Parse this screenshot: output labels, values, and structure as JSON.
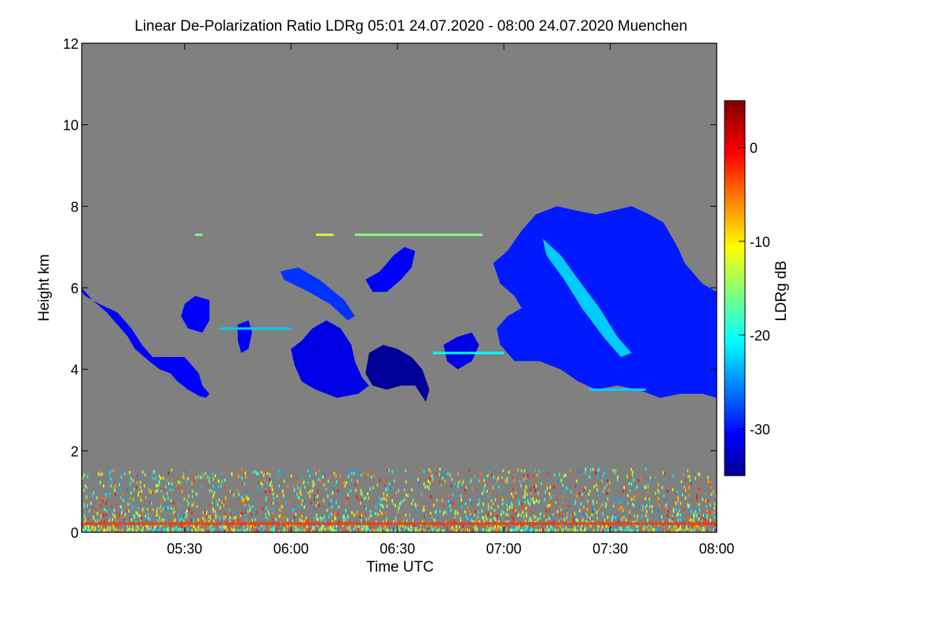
{
  "chart_data": {
    "type": "heatmap",
    "title": "Linear De-Polarization Ratio LDRg   05:01 24.07.2020 - 08:00 24.07.2020 Muenchen",
    "xlabel": "Time UTC",
    "ylabel": "Height km",
    "xlim_minutes": [
      301,
      480
    ],
    "ylim": [
      0,
      12
    ],
    "x_ticks": [
      {
        "minutes": 330,
        "label": "05:30"
      },
      {
        "minutes": 360,
        "label": "06:00"
      },
      {
        "minutes": 390,
        "label": "06:30"
      },
      {
        "minutes": 420,
        "label": "07:00"
      },
      {
        "minutes": 450,
        "label": "07:30"
      },
      {
        "minutes": 480,
        "label": "08:00"
      }
    ],
    "y_ticks": [
      {
        "value": 0,
        "label": "0"
      },
      {
        "value": 2,
        "label": "2"
      },
      {
        "value": 4,
        "label": "4"
      },
      {
        "value": 6,
        "label": "6"
      },
      {
        "value": 8,
        "label": "8"
      },
      {
        "value": 10,
        "label": "10"
      },
      {
        "value": 12,
        "label": "12"
      }
    ],
    "colorbar": {
      "label": "LDRg dB",
      "range": [
        -35,
        5
      ],
      "ticks": [
        {
          "value": 0,
          "label": "0"
        },
        {
          "value": -10,
          "label": "-10"
        },
        {
          "value": -20,
          "label": "-20"
        },
        {
          "value": -30,
          "label": "-30"
        }
      ]
    },
    "background_color": "#808080",
    "cloud_regions": [
      {
        "name": "cloud-left-slab",
        "points": [
          [
            301,
            6.0
          ],
          [
            304,
            5.7
          ],
          [
            308,
            5.4
          ],
          [
            312,
            5.0
          ],
          [
            314,
            4.8
          ],
          [
            316,
            4.5
          ],
          [
            320,
            4.2
          ],
          [
            323,
            4.0
          ],
          [
            326,
            3.9
          ],
          [
            328,
            3.7
          ],
          [
            331,
            3.5
          ],
          [
            334,
            3.35
          ],
          [
            336,
            3.3
          ],
          [
            337,
            3.4
          ],
          [
            335,
            3.6
          ],
          [
            334,
            3.9
          ],
          [
            332,
            4.1
          ],
          [
            330,
            4.3
          ],
          [
            326,
            4.3
          ],
          [
            321,
            4.3
          ],
          [
            318,
            4.6
          ],
          [
            315,
            5.0
          ],
          [
            311,
            5.4
          ],
          [
            306,
            5.6
          ],
          [
            302,
            5.8
          ],
          [
            301,
            5.9
          ]
        ],
        "ldr": -30
      },
      {
        "name": "cloud-small-upper-left",
        "points": [
          [
            330,
            5.6
          ],
          [
            333,
            5.8
          ],
          [
            337,
            5.7
          ],
          [
            337,
            5.2
          ],
          [
            335,
            4.9
          ],
          [
            331,
            5.0
          ],
          [
            329,
            5.3
          ]
        ],
        "ldr": -30
      },
      {
        "name": "cloud-small-mid-left",
        "points": [
          [
            345,
            5.1
          ],
          [
            348,
            5.2
          ],
          [
            349,
            4.9
          ],
          [
            348,
            4.5
          ],
          [
            346,
            4.4
          ],
          [
            345,
            4.7
          ]
        ],
        "ldr": -30
      },
      {
        "name": "cloud-center-left",
        "points": [
          [
            360,
            4.5
          ],
          [
            363,
            4.7
          ],
          [
            366,
            5.0
          ],
          [
            370,
            5.2
          ],
          [
            374,
            5.0
          ],
          [
            377,
            4.6
          ],
          [
            378,
            4.2
          ],
          [
            380,
            3.8
          ],
          [
            382,
            3.6
          ],
          [
            379,
            3.4
          ],
          [
            373,
            3.3
          ],
          [
            367,
            3.5
          ],
          [
            363,
            3.7
          ],
          [
            361,
            4.1
          ]
        ],
        "ldr": -31
      },
      {
        "name": "cloud-center-dark",
        "points": [
          [
            382,
            4.4
          ],
          [
            386,
            4.6
          ],
          [
            390,
            4.5
          ],
          [
            394,
            4.3
          ],
          [
            397,
            4.0
          ],
          [
            399,
            3.5
          ],
          [
            398,
            3.2
          ],
          [
            395,
            3.6
          ],
          [
            391,
            3.6
          ],
          [
            387,
            3.5
          ],
          [
            383,
            3.6
          ],
          [
            381,
            3.9
          ]
        ],
        "ldr": -34
      },
      {
        "name": "cloud-thin-band-left",
        "points": [
          [
            357,
            6.4
          ],
          [
            362,
            6.5
          ],
          [
            368,
            6.2
          ],
          [
            375,
            5.7
          ],
          [
            378,
            5.3
          ],
          [
            376,
            5.2
          ],
          [
            371,
            5.6
          ],
          [
            365,
            5.9
          ],
          [
            358,
            6.2
          ]
        ],
        "ldr": -28
      },
      {
        "name": "cloud-top-center",
        "points": [
          [
            381,
            6.2
          ],
          [
            385,
            6.4
          ],
          [
            389,
            6.8
          ],
          [
            392,
            7.0
          ],
          [
            395,
            6.9
          ],
          [
            394,
            6.5
          ],
          [
            391,
            6.2
          ],
          [
            387,
            5.9
          ],
          [
            383,
            5.9
          ]
        ],
        "ldr": -30
      },
      {
        "name": "cloud-center-right-small",
        "points": [
          [
            403,
            4.6
          ],
          [
            407,
            4.8
          ],
          [
            411,
            4.9
          ],
          [
            413,
            4.6
          ],
          [
            411,
            4.2
          ],
          [
            407,
            4.0
          ],
          [
            404,
            4.2
          ]
        ],
        "ldr": -31
      },
      {
        "name": "cloud-right-main",
        "points": [
          [
            417,
            6.6
          ],
          [
            421,
            6.9
          ],
          [
            425,
            7.4
          ],
          [
            429,
            7.8
          ],
          [
            435,
            8.0
          ],
          [
            440,
            7.9
          ],
          [
            446,
            7.8
          ],
          [
            451,
            7.9
          ],
          [
            456,
            8.0
          ],
          [
            461,
            7.8
          ],
          [
            465,
            7.6
          ],
          [
            469,
            7.0
          ],
          [
            471,
            6.6
          ],
          [
            476,
            6.1
          ],
          [
            480,
            5.9
          ],
          [
            480,
            3.3
          ],
          [
            476,
            3.4
          ],
          [
            470,
            3.4
          ],
          [
            464,
            3.3
          ],
          [
            458,
            3.5
          ],
          [
            452,
            3.6
          ],
          [
            446,
            3.5
          ],
          [
            441,
            3.7
          ],
          [
            436,
            4.0
          ],
          [
            430,
            4.2
          ],
          [
            423,
            4.2
          ],
          [
            419,
            4.6
          ],
          [
            418,
            5.0
          ],
          [
            421,
            5.3
          ],
          [
            425,
            5.5
          ],
          [
            423,
            5.8
          ],
          [
            419,
            6.1
          ]
        ],
        "ldr": -29
      },
      {
        "name": "cloud-right-streak",
        "points": [
          [
            431,
            7.2
          ],
          [
            436,
            6.8
          ],
          [
            441,
            6.2
          ],
          [
            447,
            5.5
          ],
          [
            452,
            4.8
          ],
          [
            456,
            4.4
          ],
          [
            453,
            4.3
          ],
          [
            448,
            4.8
          ],
          [
            442,
            5.5
          ],
          [
            437,
            6.2
          ],
          [
            432,
            6.8
          ]
        ],
        "ldr": -22
      }
    ],
    "boundary_layer": {
      "height_range": [
        0.0,
        1.6
      ],
      "ldr_range": [
        -25,
        0
      ]
    },
    "thin_layers": [
      {
        "height": 7.3,
        "x_range": [
          333,
          335
        ],
        "ldr": -15
      },
      {
        "height": 7.3,
        "x_range": [
          367,
          372
        ],
        "ldr": -12
      },
      {
        "height": 7.3,
        "x_range": [
          378,
          414
        ],
        "ldr": -15
      },
      {
        "height": 5.0,
        "x_range": [
          340,
          360
        ],
        "ldr": -22
      },
      {
        "height": 4.4,
        "x_range": [
          400,
          420
        ],
        "ldr": -20
      },
      {
        "height": 3.5,
        "x_range": [
          444,
          460
        ],
        "ldr": -22
      }
    ]
  }
}
